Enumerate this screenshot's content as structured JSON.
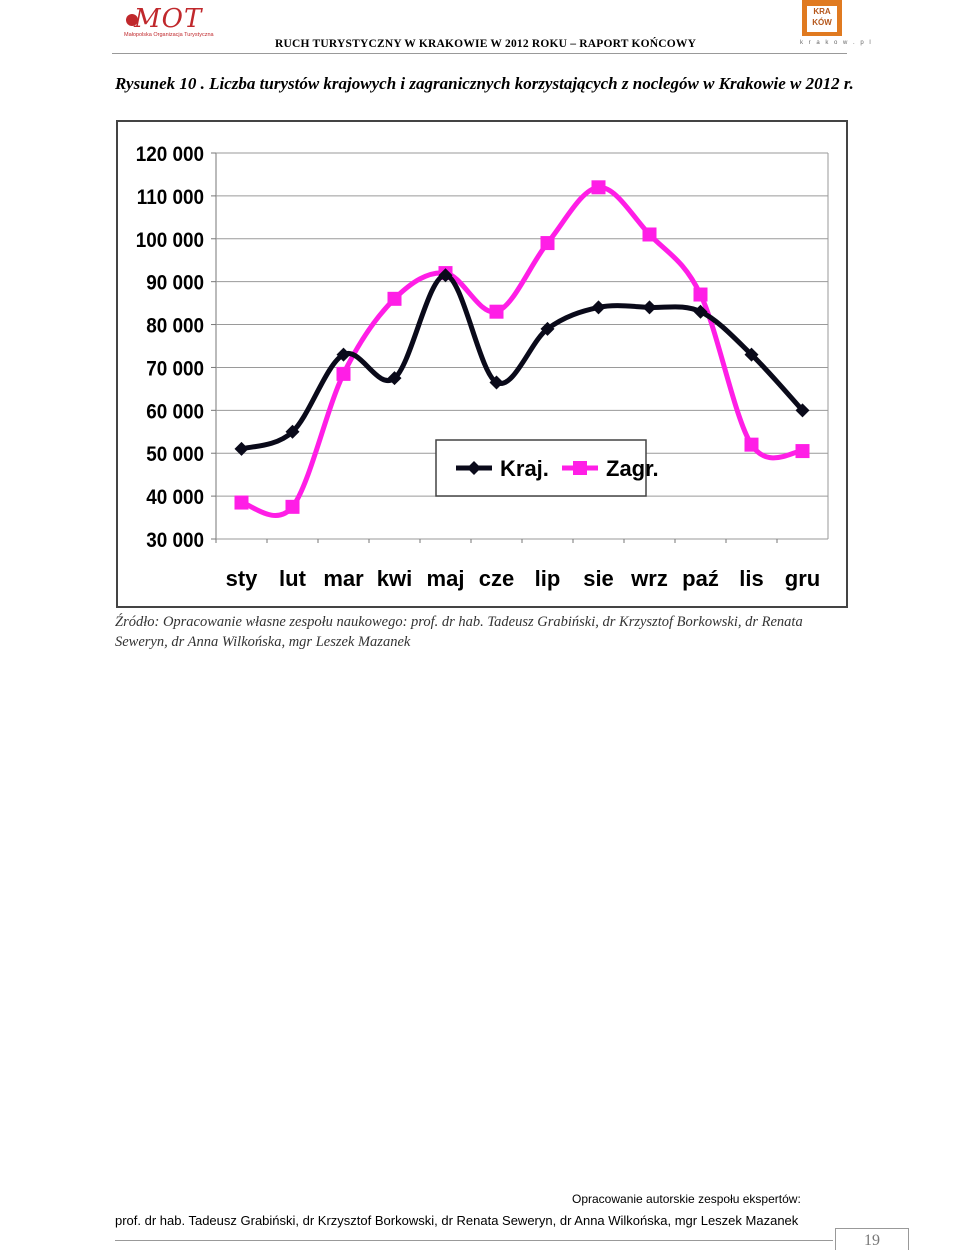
{
  "header": {
    "logo_left_text": "MOT",
    "logo_left_sub": "Małopolska Organizacja Turystyczna",
    "title": "RUCH TURYSTYCZNY W KRAKOWIE W 2012 ROKU – RAPORT KOŃCOWY",
    "logo_right_text": "KRA KÓW",
    "logo_right_url": "k r a k o w . p l"
  },
  "caption": "Rysunek 10 . Liczba turystów krajowych i zagranicznych korzystających z noclegów w Krakowie w 2012 r.",
  "chart_data": {
    "type": "line",
    "categories": [
      "sty",
      "lut",
      "mar",
      "kwi",
      "maj",
      "cze",
      "lip",
      "sie",
      "wrz",
      "paź",
      "lis",
      "gru"
    ],
    "series": [
      {
        "name": "Kraj.",
        "color": "#0a0a1a",
        "marker": "diamond",
        "values": [
          51000,
          55000,
          73000,
          67500,
          91500,
          66500,
          79000,
          84000,
          84000,
          83000,
          73000,
          60000
        ]
      },
      {
        "name": "Zagr.",
        "color": "#ff1ee6",
        "marker": "square",
        "values": [
          38500,
          37500,
          68500,
          86000,
          92000,
          83000,
          99000,
          112000,
          101000,
          87000,
          52000,
          50500
        ]
      }
    ],
    "yticks": [
      "120 000",
      "110 000",
      "100 000",
      "90 000",
      "80 000",
      "70 000",
      "60 000",
      "50 000",
      "40 000",
      "30 000"
    ],
    "ylim": [
      30000,
      120000
    ],
    "grid": true,
    "legend_position": "inside-bottom-right",
    "smooth": true
  },
  "source": "Źródło: Opracowanie własne zespołu naukowego: prof. dr hab. Tadeusz Grabiński, dr Krzysztof Borkowski, dr Renata Seweryn, dr Anna Wilkońska, mgr Leszek Mazanek",
  "footer": {
    "label": "Opracowanie autorskie zespołu ekspertów:",
    "authors": "prof. dr hab. Tadeusz Grabiński, dr Krzysztof Borkowski, dr Renata Seweryn, dr Anna Wilkońska, mgr Leszek Mazanek",
    "page_number": "19"
  }
}
